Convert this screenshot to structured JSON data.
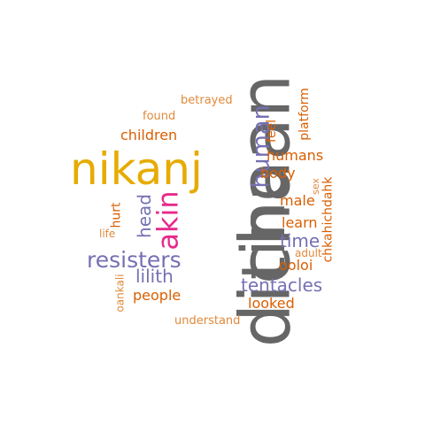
{
  "words": [
    {
      "text": "dichaan",
      "color": "#666666",
      "rotated": true
    },
    {
      "text": "tino",
      "color": "#666666",
      "rotated": true
    },
    {
      "text": "nikanj",
      "color": "#e6ab02",
      "rotated": false
    },
    {
      "text": "akin",
      "color": "#e7298a",
      "rotated": true
    },
    {
      "text": "human",
      "color": "#7570b3",
      "rotated": true
    },
    {
      "text": "resisters",
      "color": "#7570b3",
      "rotated": false
    },
    {
      "text": "tentacles",
      "color": "#7570b3",
      "rotated": false
    },
    {
      "text": "head",
      "color": "#7570b3",
      "rotated": true
    },
    {
      "text": "lilith",
      "color": "#7570b3",
      "rotated": false
    },
    {
      "text": "time",
      "color": "#7570b3",
      "rotated": false
    },
    {
      "text": "children",
      "color": "#d95f02",
      "rotated": false
    },
    {
      "text": "humans",
      "color": "#d95f02",
      "rotated": false
    },
    {
      "text": "body",
      "color": "#d95f02",
      "rotated": false
    },
    {
      "text": "male",
      "color": "#d95f02",
      "rotated": false
    },
    {
      "text": "learn",
      "color": "#d95f02",
      "rotated": false
    },
    {
      "text": "people",
      "color": "#d95f02",
      "rotated": false
    },
    {
      "text": "ooloi",
      "color": "#d95f02",
      "rotated": false
    },
    {
      "text": "looked",
      "color": "#d95f02",
      "rotated": false
    },
    {
      "text": "feel",
      "color": "#d95f02",
      "rotated": true
    },
    {
      "text": "platform",
      "color": "#d95f02",
      "rotated": true
    },
    {
      "text": "chkahichdahk",
      "color": "#d95f02",
      "rotated": true
    },
    {
      "text": "hurt",
      "color": "#d95f02",
      "rotated": true
    },
    {
      "text": "betrayed",
      "color": "#e08a3c",
      "rotated": false
    },
    {
      "text": "found",
      "color": "#e08a3c",
      "rotated": false
    },
    {
      "text": "understand",
      "color": "#e08a3c",
      "rotated": false
    },
    {
      "text": "oankali",
      "color": "#e08a3c",
      "rotated": true
    },
    {
      "text": "life",
      "color": "#e08a3c",
      "rotated": false
    },
    {
      "text": "adult",
      "color": "#e08a3c",
      "rotated": false
    },
    {
      "text": "sex",
      "color": "#e08a3c",
      "rotated": true
    }
  ]
}
